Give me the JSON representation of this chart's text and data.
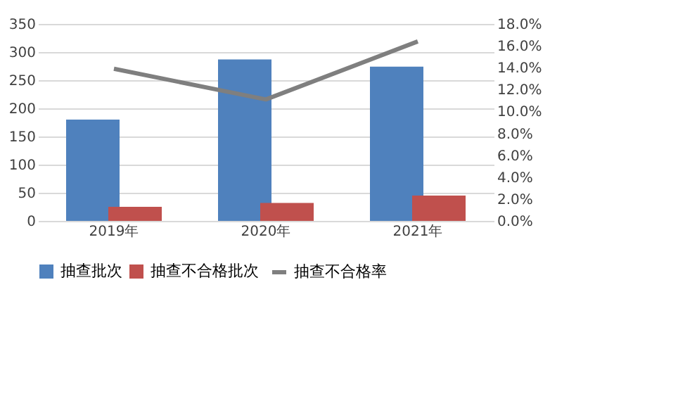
{
  "chart_data": {
    "type": "bar",
    "categories": [
      "2019年",
      "2020年",
      "2021年"
    ],
    "series": [
      {
        "name": "抽查批次",
        "color": "#4f81bd",
        "values": [
          180,
          287,
          274
        ]
      },
      {
        "name": "抽查不合格批次",
        "color": "#c0504d",
        "values": [
          25,
          32,
          45
        ]
      },
      {
        "name": "抽查不合格率",
        "type": "line",
        "axis": "y2",
        "color": "#7f7f7f",
        "values": [
          13.9,
          11.1,
          16.4
        ]
      }
    ],
    "ylim": [
      0,
      350
    ],
    "yticks": [
      0,
      50,
      100,
      150,
      200,
      250,
      300,
      350
    ],
    "y2lim": [
      0,
      18
    ],
    "y2ticks": [
      {
        "value": 0,
        "label": "0.0%"
      },
      {
        "value": 2,
        "label": "2.0%"
      },
      {
        "value": 4,
        "label": "4.0%"
      },
      {
        "value": 6,
        "label": "6.0%"
      },
      {
        "value": 8,
        "label": "8.0%"
      },
      {
        "value": 10,
        "label": "10.0%"
      },
      {
        "value": 12,
        "label": "12.0%"
      },
      {
        "value": 14,
        "label": "14.0%"
      },
      {
        "value": 16,
        "label": "16.0%"
      },
      {
        "value": 18,
        "label": "18.0%"
      }
    ],
    "grid": "y",
    "legend": "bottom",
    "marker": "none",
    "line_style": "solid"
  }
}
